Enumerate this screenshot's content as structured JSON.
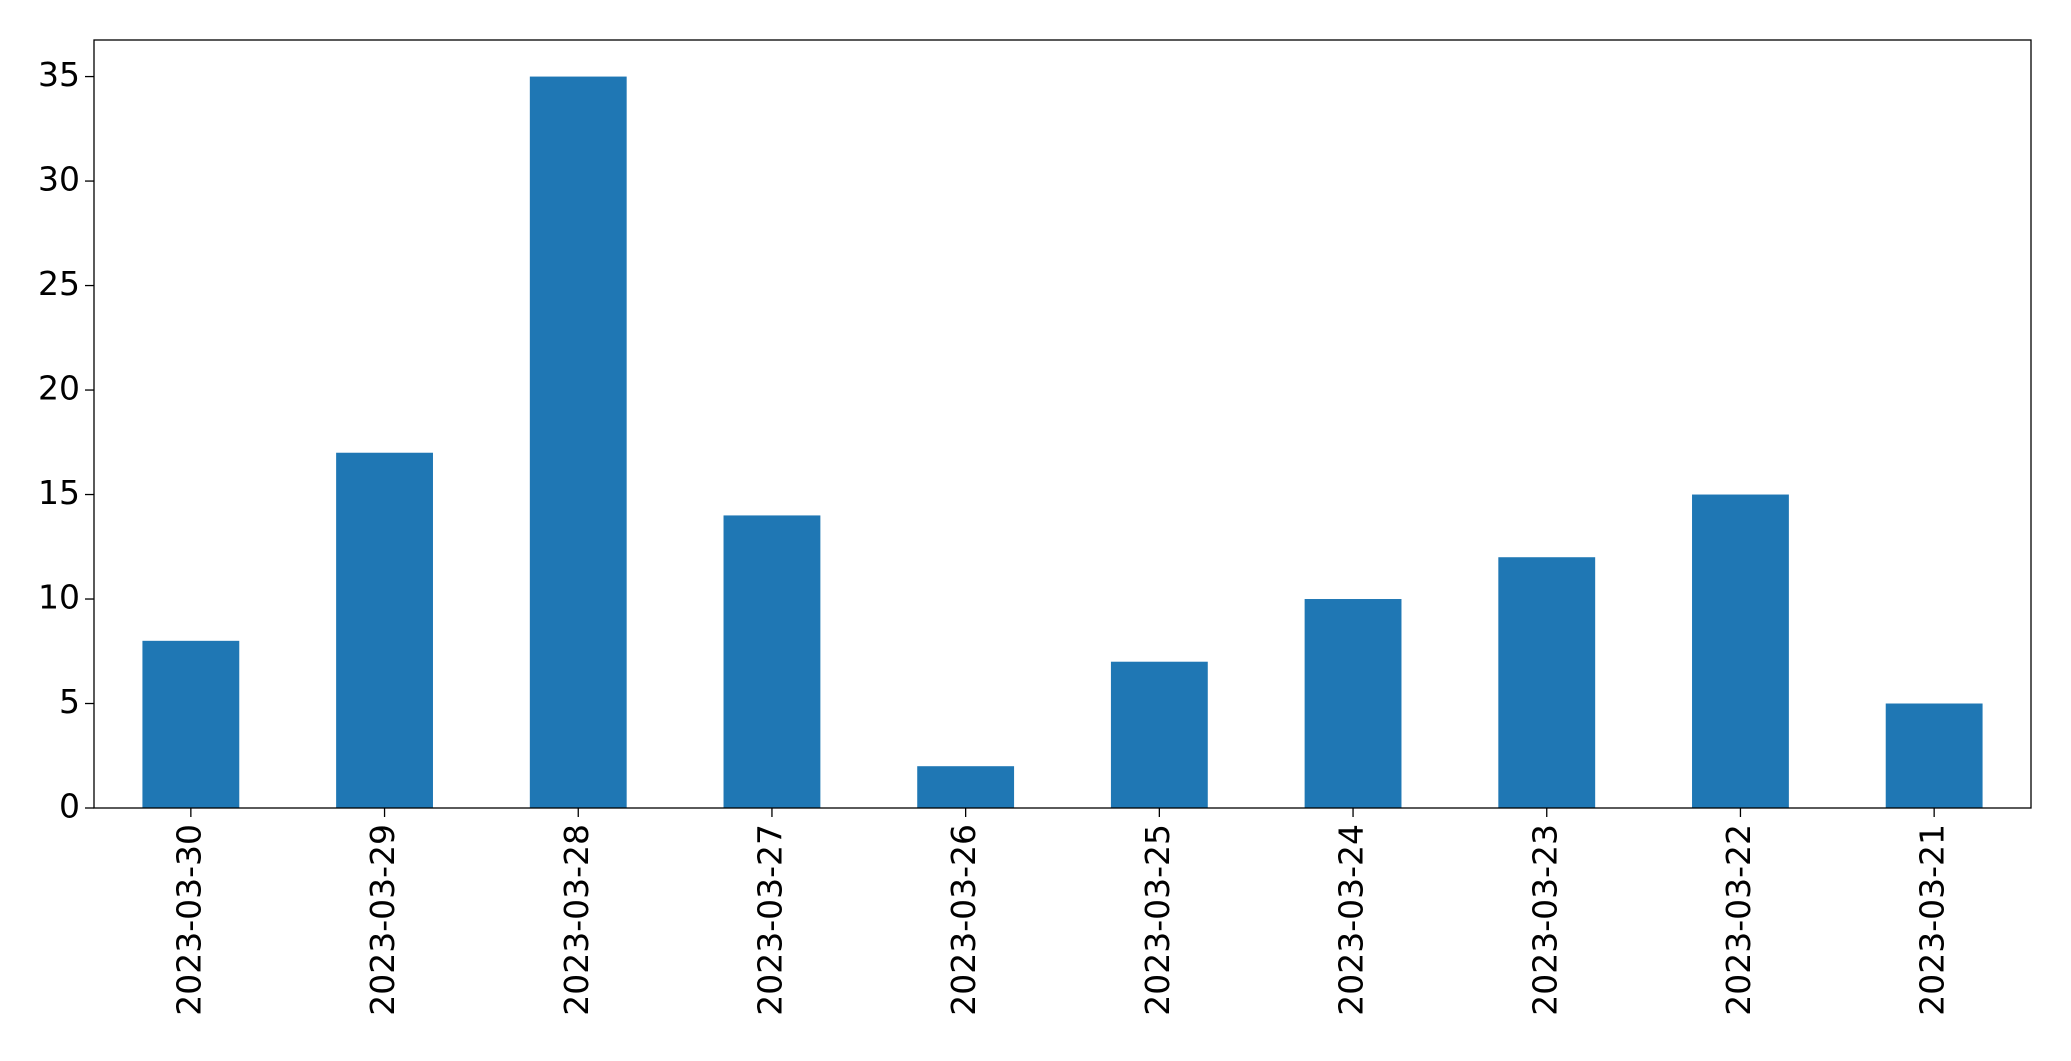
{
  "chart_data": {
    "type": "bar",
    "categories": [
      "2023-03-30",
      "2023-03-29",
      "2023-03-28",
      "2023-03-27",
      "2023-03-26",
      "2023-03-25",
      "2023-03-24",
      "2023-03-23",
      "2023-03-22",
      "2023-03-21"
    ],
    "values": [
      8,
      17,
      35,
      14,
      2,
      7,
      10,
      12,
      15,
      5
    ],
    "color": "#1f77b4",
    "ylim": [
      0,
      36.75
    ],
    "yticks": [
      0,
      5,
      10,
      15,
      20,
      25,
      30,
      35
    ],
    "grid": false
  }
}
